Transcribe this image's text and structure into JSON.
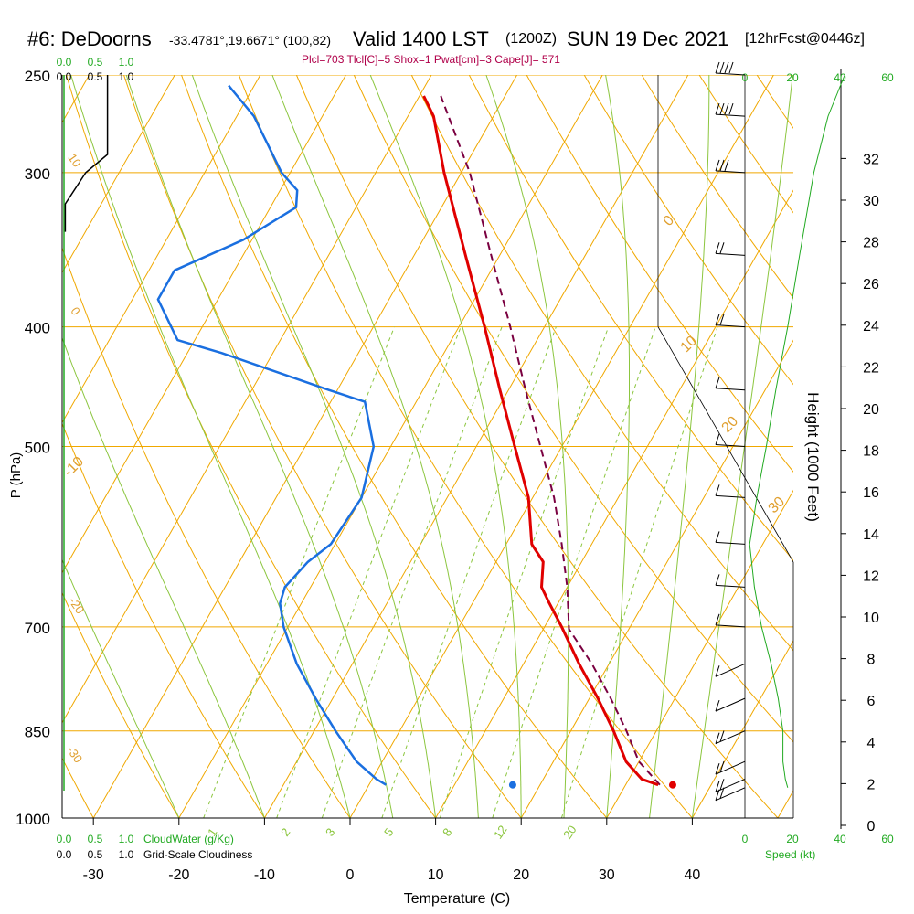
{
  "header": {
    "station": "#6: DeDoorns",
    "coords": "-33.4781°,19.6671° (100,82)",
    "valid": "Valid 1400 LST",
    "utc": "(1200Z)",
    "date": "SUN 19 Dec 2021",
    "forecast": "[12hrFcst@0446z]",
    "params": "Plcl=703 Tlcl[C]=5 Shox=1 Pwat[cm]=3 Cape[J]= 571"
  },
  "colors": {
    "isotherm": "#f0a800",
    "dry_adiabat": "#f0a800",
    "moist_adiabat": "#8cc63f",
    "mixing_ratio": "#8cc63f",
    "temperature": "#e00000",
    "dewpoint": "#1a6fe0",
    "parcel": "#7a0040",
    "cloud": "#22aa22",
    "label_green": "#22aa22",
    "label_orange": "#e0a030"
  },
  "chart_data": {
    "type": "skew-t",
    "xlabel": "Temperature (C)",
    "ylabel": "P (hPa)",
    "right_ylabel": "Height (1000 Feet)",
    "x_ticks": [
      "-30",
      "-20",
      "-10",
      "0",
      "10",
      "20",
      "30",
      "40"
    ],
    "x_tick_values": [
      -30,
      -20,
      -10,
      0,
      10,
      20,
      30,
      40
    ],
    "p_ticks": [
      "250",
      "300",
      "400",
      "500",
      "700",
      "850",
      "1000"
    ],
    "p_tick_values": [
      250,
      300,
      400,
      500,
      700,
      850,
      1000
    ],
    "height_ticks": [
      "0",
      "2",
      "4",
      "6",
      "8",
      "10",
      "12",
      "14",
      "16",
      "18",
      "20",
      "22",
      "24",
      "26",
      "28",
      "30",
      "32"
    ],
    "height_tick_values": [
      0,
      2,
      4,
      6,
      8,
      10,
      12,
      14,
      16,
      18,
      20,
      22,
      24,
      26,
      28,
      30,
      32
    ],
    "temperature_profile": [
      {
        "p": 940,
        "t": 33.8
      },
      {
        "p": 930,
        "t": 31.5
      },
      {
        "p": 900,
        "t": 28.5
      },
      {
        "p": 850,
        "t": 25.0
      },
      {
        "p": 800,
        "t": 21.0
      },
      {
        "p": 750,
        "t": 16.5
      },
      {
        "p": 700,
        "t": 12.0
      },
      {
        "p": 670,
        "t": 9.0
      },
      {
        "p": 650,
        "t": 7.0
      },
      {
        "p": 620,
        "t": 5.5
      },
      {
        "p": 600,
        "t": 3.0
      },
      {
        "p": 550,
        "t": -0.5
      },
      {
        "p": 500,
        "t": -5.5
      },
      {
        "p": 450,
        "t": -11.0
      },
      {
        "p": 400,
        "t": -17.0
      },
      {
        "p": 350,
        "t": -24.0
      },
      {
        "p": 300,
        "t": -32.0
      },
      {
        "p": 270,
        "t": -37.0
      },
      {
        "p": 260,
        "t": -39.5
      }
    ],
    "parcel_profile": [
      {
        "p": 940,
        "t": 34.0
      },
      {
        "p": 900,
        "t": 30.0
      },
      {
        "p": 850,
        "t": 26.5
      },
      {
        "p": 800,
        "t": 22.5
      },
      {
        "p": 750,
        "t": 18.0
      },
      {
        "p": 703,
        "t": 13.0
      },
      {
        "p": 650,
        "t": 10.0
      },
      {
        "p": 600,
        "t": 6.5
      },
      {
        "p": 550,
        "t": 2.5
      },
      {
        "p": 500,
        "t": -2.5
      },
      {
        "p": 450,
        "t": -8.0
      },
      {
        "p": 400,
        "t": -14.0
      },
      {
        "p": 350,
        "t": -21.0
      },
      {
        "p": 300,
        "t": -29.0
      },
      {
        "p": 260,
        "t": -37.5
      }
    ],
    "dewpoint_profile": [
      {
        "p": 940,
        "t": 2.0
      },
      {
        "p": 930,
        "t": 0.5
      },
      {
        "p": 900,
        "t": -3.0
      },
      {
        "p": 850,
        "t": -7.5
      },
      {
        "p": 800,
        "t": -12.0
      },
      {
        "p": 750,
        "t": -16.5
      },
      {
        "p": 700,
        "t": -20.5
      },
      {
        "p": 670,
        "t": -22.5
      },
      {
        "p": 650,
        "t": -23.0
      },
      {
        "p": 620,
        "t": -22.0
      },
      {
        "p": 600,
        "t": -20.5
      },
      {
        "p": 550,
        "t": -20.0
      },
      {
        "p": 500,
        "t": -22.0
      },
      {
        "p": 460,
        "t": -26.0
      },
      {
        "p": 450,
        "t": -31.0
      },
      {
        "p": 420,
        "t": -46.0
      },
      {
        "p": 410,
        "t": -52.0
      },
      {
        "p": 380,
        "t": -57.0
      },
      {
        "p": 360,
        "t": -57.0
      },
      {
        "p": 340,
        "t": -51.0
      },
      {
        "p": 320,
        "t": -47.0
      },
      {
        "p": 310,
        "t": -48.0
      },
      {
        "p": 300,
        "t": -51.0
      },
      {
        "p": 270,
        "t": -58.0
      },
      {
        "p": 255,
        "t": -63.0
      }
    ],
    "surface_temperature": 35.5,
    "surface_dewpoint": 16.8,
    "surface_pressure": 940,
    "dry_adiabat_labels": [
      "-10",
      "0",
      "10",
      "20",
      "30"
    ],
    "dry_adiabat_label_values": [
      -10,
      0,
      10,
      20,
      30
    ],
    "isotherm_side_labels": [
      "10",
      "0",
      "-10",
      "-20",
      "-30"
    ],
    "mixing_ratio_labels": [
      "1",
      "2",
      "3",
      "5",
      "8",
      "12",
      "20"
    ],
    "mixing_ratio_values": [
      1,
      2,
      3,
      5,
      8,
      12,
      20
    ],
    "cloud_axis": {
      "title_top": [
        "0.0",
        "0.5",
        "1.0"
      ],
      "title_top_black": [
        "0.0",
        "0.5",
        "1.0"
      ],
      "bottom_green": [
        "0.0",
        "0.5",
        "1.0"
      ],
      "bottom_black": [
        "0.0",
        "0.5",
        "1.0"
      ],
      "cloudwater_label": "CloudWater (g/Kg)",
      "cloudiness_label": "Grid-Scale Cloudiness",
      "cloudiness_profile": [
        {
          "p": 250,
          "c": 0.7
        },
        {
          "p": 290,
          "c": 0.7
        },
        {
          "p": 300,
          "c": 0.35
        },
        {
          "p": 318,
          "c": 0.02
        },
        {
          "p": 335,
          "c": 0.02
        }
      ]
    },
    "wind_axis": {
      "ticks": [
        "0",
        "20",
        "40",
        "60"
      ],
      "tick_values": [
        0,
        20,
        40,
        60
      ],
      "label": "Speed (kt)",
      "speed_profile": [
        {
          "p": 945,
          "s": 18
        },
        {
          "p": 930,
          "s": 17
        },
        {
          "p": 900,
          "s": 16
        },
        {
          "p": 850,
          "s": 16
        },
        {
          "p": 800,
          "s": 14
        },
        {
          "p": 750,
          "s": 11
        },
        {
          "p": 700,
          "s": 7
        },
        {
          "p": 650,
          "s": 4
        },
        {
          "p": 600,
          "s": 2
        },
        {
          "p": 550,
          "s": 5
        },
        {
          "p": 500,
          "s": 9
        },
        {
          "p": 450,
          "s": 13
        },
        {
          "p": 400,
          "s": 18
        },
        {
          "p": 350,
          "s": 23
        },
        {
          "p": 300,
          "s": 29
        },
        {
          "p": 270,
          "s": 35
        },
        {
          "p": 250,
          "s": 42
        }
      ]
    }
  },
  "axes_titles": {
    "temperature": "Temperature (C)",
    "pressure": "P (hPa)",
    "height": "Height (1000 Feet)"
  }
}
